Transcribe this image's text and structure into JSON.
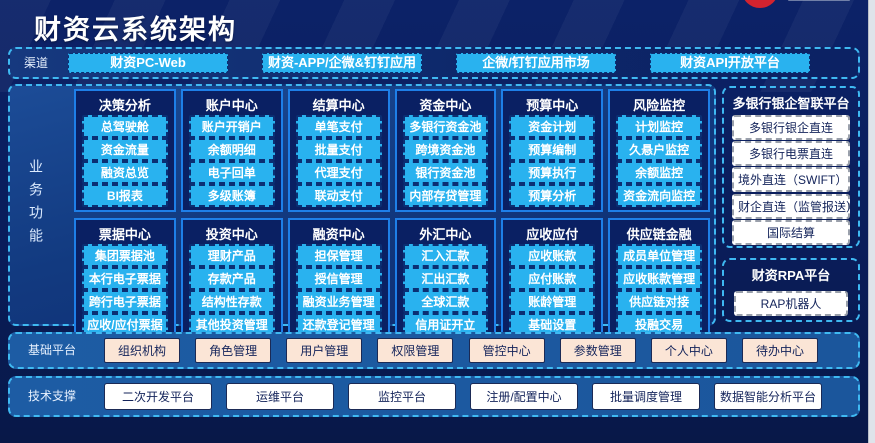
{
  "header": {
    "title": "财资云系统架构"
  },
  "channels": {
    "label": "渠道",
    "items": [
      "财资PC-Web",
      "财资-APP/企微&钉钉应用",
      "企微/钉钉应用市场",
      "财资API开放平台"
    ]
  },
  "business": {
    "label": "业务功能",
    "columns": [
      {
        "title": "决策分析",
        "items": [
          "总驾驶舱",
          "资金流量",
          "融资总览",
          "BI报表"
        ]
      },
      {
        "title": "账户中心",
        "items": [
          "账户开销户",
          "余额明细",
          "电子回单",
          "多级账簿"
        ]
      },
      {
        "title": "结算中心",
        "items": [
          "单笔支付",
          "批量支付",
          "代理支付",
          "联动支付"
        ]
      },
      {
        "title": "资金中心",
        "items": [
          "多银行资金池",
          "跨境资金池",
          "银行资金池",
          "内部存贷管理"
        ]
      },
      {
        "title": "预算中心",
        "items": [
          "资金计划",
          "预算编制",
          "预算执行",
          "预算分析"
        ]
      },
      {
        "title": "风险监控",
        "items": [
          "计划监控",
          "久悬户监控",
          "余额监控",
          "资金流向监控"
        ]
      },
      {
        "title": "票据中心",
        "items": [
          "集团票据池",
          "本行电子票据",
          "跨行电子票据",
          "应收/应付票据"
        ]
      },
      {
        "title": "投资中心",
        "items": [
          "理财产品",
          "存款产品",
          "结构性存款",
          "其他投资管理"
        ]
      },
      {
        "title": "融资中心",
        "items": [
          "担保管理",
          "授信管理",
          "融资业务管理",
          "还款登记管理"
        ]
      },
      {
        "title": "外汇中心",
        "items": [
          "汇入汇款",
          "汇出汇款",
          "全球汇款",
          "信用证开立"
        ]
      },
      {
        "title": "应收应付",
        "items": [
          "应收账款",
          "应付账款",
          "账龄管理",
          "基础设置"
        ]
      },
      {
        "title": "供应链金融",
        "items": [
          "成员单位管理",
          "应收账款管理",
          "供应链对接",
          "投融交易"
        ]
      }
    ]
  },
  "bank_platform": {
    "title": "多银行银企智联平台",
    "items": [
      "多银行银企直连",
      "多银行电票直连",
      "境外直连（SWIFT）",
      "财企直连（监管报送）",
      "国际结算"
    ]
  },
  "rpa_platform": {
    "title": "财资RPA平台",
    "items": [
      "RAP机器人"
    ]
  },
  "base_platform": {
    "label": "基础平台",
    "items": [
      "组织机构",
      "角色管理",
      "用户管理",
      "权限管理",
      "管控中心",
      "参数管理",
      "个人中心",
      "待办中心"
    ]
  },
  "tech_support": {
    "label": "技术支撑",
    "items": [
      "二次开发平台",
      "运维平台",
      "监控平台",
      "注册/配置中心",
      "批量调度管理",
      "数据智能分析平台"
    ]
  },
  "colors": {
    "page_bg": "#0a1d5a",
    "accent_cyan_button": "#29b2ef",
    "dashed_border_cyan": "#3fb9f2",
    "column_border_blue": "#1e7fe8",
    "row_fill_blue": "#1d5ca4",
    "peach_button": "#fbe5d6",
    "logo_red": "#d3232f"
  }
}
